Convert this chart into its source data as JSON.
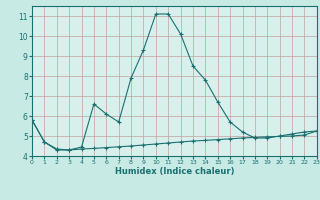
{
  "title": "",
  "xlabel": "Humidex (Indice chaleur)",
  "ylabel": "",
  "bg_color": "#c8eae4",
  "plot_bg_color": "#d8f0ec",
  "grid_color": "#c4a0a0",
  "line_color": "#1a7070",
  "marker_color": "#1a7070",
  "x_data": [
    0,
    1,
    2,
    3,
    4,
    5,
    6,
    7,
    8,
    9,
    10,
    11,
    12,
    13,
    14,
    15,
    16,
    17,
    18,
    19,
    20,
    21,
    22,
    23
  ],
  "y_main": [
    5.8,
    4.7,
    4.3,
    4.3,
    4.45,
    6.6,
    6.1,
    5.7,
    7.9,
    9.3,
    11.1,
    11.1,
    10.1,
    8.5,
    7.8,
    6.7,
    5.7,
    5.2,
    4.9,
    4.9,
    5.0,
    5.1,
    5.2,
    5.25
  ],
  "y_flat": [
    5.8,
    4.7,
    4.35,
    4.3,
    4.35,
    4.38,
    4.42,
    4.46,
    4.5,
    4.55,
    4.6,
    4.65,
    4.7,
    4.75,
    4.78,
    4.82,
    4.86,
    4.9,
    4.93,
    4.96,
    4.98,
    5.0,
    5.05,
    5.25
  ],
  "xlim": [
    0,
    23
  ],
  "ylim": [
    4.0,
    11.5
  ],
  "yticks": [
    4,
    5,
    6,
    7,
    8,
    9,
    10,
    11
  ],
  "xticks": [
    0,
    1,
    2,
    3,
    4,
    5,
    6,
    7,
    8,
    9,
    10,
    11,
    12,
    13,
    14,
    15,
    16,
    17,
    18,
    19,
    20,
    21,
    22,
    23
  ]
}
